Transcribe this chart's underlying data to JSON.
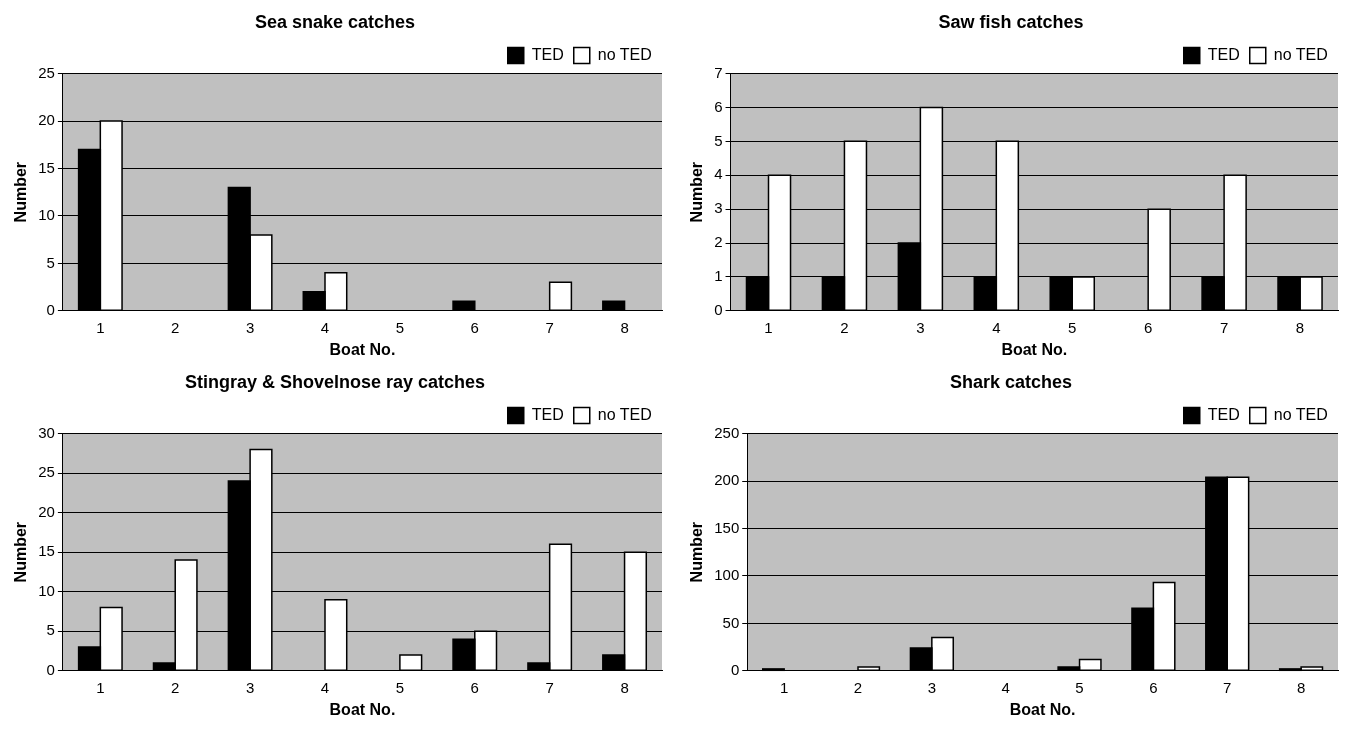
{
  "chart_data": [
    {
      "type": "bar",
      "title": "Sea snake catches",
      "xlabel": "Boat No.",
      "ylabel": "Number",
      "categories": [
        "1",
        "2",
        "3",
        "4",
        "5",
        "6",
        "7",
        "8"
      ],
      "series": [
        {
          "name": "TED",
          "color": "#000000",
          "values": [
            17,
            0,
            13,
            2,
            0,
            1,
            0,
            1
          ]
        },
        {
          "name": "no TED",
          "color": "#ffffff",
          "values": [
            20,
            0,
            8,
            4,
            0,
            0,
            3,
            0
          ]
        }
      ],
      "ylim": [
        0,
        25
      ],
      "yticks": [
        0,
        5,
        10,
        15,
        20,
        25
      ],
      "grid": "y",
      "legend": "top right"
    },
    {
      "type": "bar",
      "title": "Saw fish catches",
      "xlabel": "Boat No.",
      "ylabel": "Number",
      "categories": [
        "1",
        "2",
        "3",
        "4",
        "5",
        "6",
        "7",
        "8"
      ],
      "series": [
        {
          "name": "TED",
          "color": "#000000",
          "values": [
            1,
            1,
            2,
            1,
            1,
            0,
            1,
            1
          ]
        },
        {
          "name": "no TED",
          "color": "#ffffff",
          "values": [
            4,
            5,
            6,
            5,
            1,
            3,
            4,
            1
          ]
        }
      ],
      "ylim": [
        0,
        7
      ],
      "yticks": [
        0,
        1,
        2,
        3,
        4,
        5,
        6,
        7
      ],
      "grid": "y",
      "legend": "top right"
    },
    {
      "type": "bar",
      "title": "Stingray & Shovelnose ray catches",
      "xlabel": "Boat No.",
      "ylabel": "Number",
      "categories": [
        "1",
        "2",
        "3",
        "4",
        "5",
        "6",
        "7",
        "8"
      ],
      "series": [
        {
          "name": "TED",
          "color": "#000000",
          "values": [
            3,
            1,
            24,
            0,
            0,
            4,
            1,
            2
          ]
        },
        {
          "name": "no TED",
          "color": "#ffffff",
          "values": [
            8,
            14,
            28,
            9,
            2,
            5,
            16,
            15
          ]
        }
      ],
      "ylim": [
        0,
        30
      ],
      "yticks": [
        0,
        5,
        10,
        15,
        20,
        25,
        30
      ],
      "grid": "y",
      "legend": "top right"
    },
    {
      "type": "bar",
      "title": "Shark catches",
      "xlabel": "Boat No.",
      "ylabel": "Number",
      "categories": [
        "1",
        "2",
        "3",
        "4",
        "5",
        "6",
        "7",
        "8"
      ],
      "series": [
        {
          "name": "TED",
          "color": "#000000",
          "values": [
            2,
            0,
            24,
            0,
            4,
            66,
            204,
            2
          ]
        },
        {
          "name": "no TED",
          "color": "#ffffff",
          "values": [
            0,
            4,
            35,
            0,
            12,
            93,
            204,
            4
          ]
        }
      ],
      "ylim": [
        0,
        250
      ],
      "yticks": [
        0,
        50,
        100,
        150,
        200,
        250
      ],
      "grid": "y",
      "legend": "top right"
    }
  ]
}
